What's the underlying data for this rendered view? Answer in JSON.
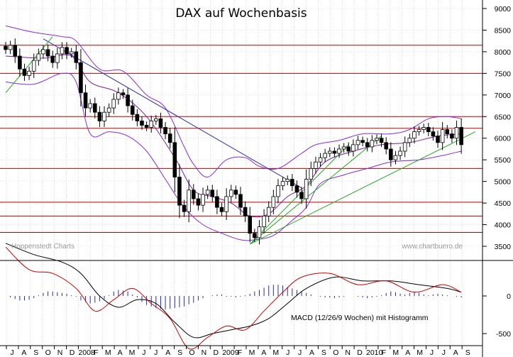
{
  "chart_data": [
    {
      "type": "candlestick",
      "title": "DAX auf Wochenbasis",
      "watermark_left": "Hoppenstedt Charts",
      "watermark_right": "www.chartbuero.de",
      "y_axis_position": "right",
      "ylim": [
        3300,
        9000
      ],
      "y_ticks": [
        3500,
        4000,
        4500,
        5000,
        5500,
        6000,
        6500,
        7000,
        7500,
        8000,
        8500,
        9000
      ],
      "horizontal_resistance_lines": [
        8150,
        7500,
        6500,
        6230,
        5300,
        4520,
        4200,
        3820
      ],
      "resistance_line_color": "#c00000",
      "x_axis": {
        "month_labels": [
          "J",
          "A",
          "S",
          "O",
          "N",
          "D",
          "2008",
          "F",
          "M",
          "A",
          "M",
          "J",
          "J",
          "A",
          "S",
          "O",
          "N",
          "D",
          "2009",
          "F",
          "M",
          "A",
          "M",
          "J",
          "J",
          "A",
          "S",
          "O",
          "N",
          "D",
          "2010",
          "F",
          "M",
          "A",
          "M",
          "J",
          "J",
          "A",
          "S"
        ]
      },
      "price_path_weekly_close": [
        [
          0,
          8050
        ],
        [
          1,
          8150
        ],
        [
          2,
          7900
        ],
        [
          3,
          7600
        ],
        [
          4,
          7450
        ],
        [
          5,
          7550
        ],
        [
          6,
          7800
        ],
        [
          7,
          7950
        ],
        [
          8,
          8050
        ],
        [
          9,
          7900
        ],
        [
          10,
          7750
        ],
        [
          11,
          7950
        ],
        [
          12,
          8100
        ],
        [
          13,
          7950
        ],
        [
          14,
          8000
        ],
        [
          15,
          7750
        ],
        [
          16,
          7050
        ],
        [
          17,
          6700
        ],
        [
          18,
          6800
        ],
        [
          19,
          6600
        ],
        [
          20,
          6400
        ],
        [
          21,
          6600
        ],
        [
          22,
          6700
        ],
        [
          23,
          6900
        ],
        [
          24,
          7050
        ],
        [
          25,
          7000
        ],
        [
          26,
          6750
        ],
        [
          27,
          6550
        ],
        [
          28,
          6400
        ],
        [
          29,
          6300
        ],
        [
          30,
          6250
        ],
        [
          31,
          6400
        ],
        [
          32,
          6450
        ],
        [
          33,
          6250
        ],
        [
          34,
          6100
        ],
        [
          35,
          5900
        ],
        [
          36,
          5100
        ],
        [
          37,
          4450
        ],
        [
          38,
          4300
        ],
        [
          39,
          4800
        ],
        [
          40,
          4600
        ],
        [
          41,
          4450
        ],
        [
          42,
          4700
        ],
        [
          43,
          4800
        ],
        [
          44,
          4650
        ],
        [
          45,
          4400
        ],
        [
          46,
          4300
        ],
        [
          47,
          4650
        ],
        [
          48,
          4800
        ],
        [
          49,
          4700
        ],
        [
          50,
          4400
        ],
        [
          51,
          4200
        ],
        [
          52,
          3800
        ],
        [
          53,
          3700
        ],
        [
          54,
          3950
        ],
        [
          55,
          4200
        ],
        [
          56,
          4400
        ],
        [
          57,
          4650
        ],
        [
          58,
          4900
        ],
        [
          59,
          5000
        ],
        [
          60,
          5050
        ],
        [
          61,
          4900
        ],
        [
          62,
          4750
        ],
        [
          63,
          4600
        ],
        [
          64,
          5050
        ],
        [
          65,
          5300
        ],
        [
          66,
          5450
        ],
        [
          67,
          5550
        ],
        [
          68,
          5650
        ],
        [
          69,
          5700
        ],
        [
          70,
          5650
        ],
        [
          71,
          5750
        ],
        [
          72,
          5800
        ],
        [
          73,
          5700
        ],
        [
          74,
          5850
        ],
        [
          75,
          5950
        ],
        [
          76,
          5900
        ],
        [
          77,
          5800
        ],
        [
          78,
          5950
        ],
        [
          79,
          6000
        ],
        [
          80,
          5900
        ],
        [
          81,
          5750
        ],
        [
          82,
          5500
        ],
        [
          83,
          5600
        ],
        [
          84,
          5700
        ],
        [
          85,
          5900
        ],
        [
          86,
          6000
        ],
        [
          87,
          6150
        ],
        [
          88,
          6200
        ],
        [
          89,
          6250
        ],
        [
          90,
          6150
        ],
        [
          91,
          6050
        ],
        [
          92,
          5900
        ],
        [
          93,
          6200
        ],
        [
          94,
          6100
        ],
        [
          95,
          6000
        ],
        [
          96,
          6250
        ],
        [
          97,
          5850
        ]
      ],
      "bollinger_upper": [
        [
          0,
          8600
        ],
        [
          6,
          8450
        ],
        [
          12,
          8350
        ],
        [
          15,
          8250
        ],
        [
          20,
          7600
        ],
        [
          25,
          7550
        ],
        [
          30,
          7000
        ],
        [
          34,
          6700
        ],
        [
          38,
          5800
        ],
        [
          40,
          5400
        ],
        [
          43,
          5100
        ],
        [
          47,
          5500
        ],
        [
          51,
          5550
        ],
        [
          54,
          5350
        ],
        [
          58,
          5300
        ],
        [
          63,
          5650
        ],
        [
          66,
          5850
        ],
        [
          71,
          5950
        ],
        [
          76,
          6100
        ],
        [
          82,
          6100
        ],
        [
          86,
          6200
        ],
        [
          90,
          6450
        ],
        [
          94,
          6500
        ],
        [
          97,
          6450
        ]
      ],
      "bollinger_lower": [
        [
          0,
          7300
        ],
        [
          6,
          7250
        ],
        [
          12,
          7500
        ],
        [
          15,
          7300
        ],
        [
          18,
          6100
        ],
        [
          22,
          6150
        ],
        [
          26,
          6050
        ],
        [
          30,
          5700
        ],
        [
          34,
          5050
        ],
        [
          38,
          4400
        ],
        [
          42,
          4000
        ],
        [
          46,
          3800
        ],
        [
          50,
          3650
        ],
        [
          53,
          3650
        ],
        [
          57,
          3750
        ],
        [
          61,
          4100
        ],
        [
          64,
          4400
        ],
        [
          67,
          4950
        ],
        [
          72,
          5150
        ],
        [
          77,
          5300
        ],
        [
          82,
          5450
        ],
        [
          88,
          5500
        ],
        [
          93,
          5600
        ],
        [
          97,
          5700
        ]
      ],
      "moving_average": [
        [
          0,
          7900
        ],
        [
          8,
          7850
        ],
        [
          14,
          7900
        ],
        [
          18,
          7300
        ],
        [
          24,
          7050
        ],
        [
          30,
          6500
        ],
        [
          36,
          5550
        ],
        [
          40,
          4800
        ],
        [
          44,
          4650
        ],
        [
          48,
          4500
        ],
        [
          52,
          4200
        ],
        [
          56,
          4250
        ],
        [
          60,
          4650
        ],
        [
          64,
          4900
        ],
        [
          68,
          5450
        ],
        [
          74,
          5700
        ],
        [
          80,
          5850
        ],
        [
          86,
          5900
        ],
        [
          92,
          6050
        ],
        [
          97,
          6100
        ]
      ],
      "trendlines": [
        {
          "color": "#2a2ab0",
          "from": [
            8,
            8300
          ],
          "to": [
            63,
            4850
          ]
        },
        {
          "color": "#22aa22",
          "from": [
            0,
            7050
          ],
          "to": [
            10,
            8350
          ]
        },
        {
          "color": "#22aa22",
          "from": [
            52,
            3550
          ],
          "to": [
            80,
            6050
          ]
        },
        {
          "color": "#22aa22",
          "from": [
            52,
            3550
          ],
          "to": [
            73,
            5850
          ]
        },
        {
          "color": "#22aa22",
          "from": [
            52,
            3550
          ],
          "to": [
            100,
            6150
          ]
        }
      ]
    },
    {
      "type": "line",
      "label": "MACD (12/26/9 Wochen) mit Histogramm",
      "ylim": [
        -600,
        800
      ],
      "y_ticks": [
        -500,
        0
      ],
      "series": [
        {
          "color": "#000000",
          "points": [
            [
              0,
              700
            ],
            [
              6,
              550
            ],
            [
              12,
              450
            ],
            [
              16,
              300
            ],
            [
              20,
              0
            ],
            [
              24,
              -150
            ],
            [
              28,
              -50
            ],
            [
              32,
              -100
            ],
            [
              36,
              -350
            ],
            [
              40,
              -550
            ],
            [
              44,
              -500
            ],
            [
              48,
              -450
            ],
            [
              52,
              -400
            ],
            [
              56,
              -300
            ],
            [
              60,
              -100
            ],
            [
              64,
              100
            ],
            [
              70,
              250
            ],
            [
              76,
              200
            ],
            [
              82,
              200
            ],
            [
              88,
              150
            ],
            [
              94,
              100
            ],
            [
              97,
              50
            ]
          ]
        },
        {
          "color": "#cc0000",
          "points": [
            [
              0,
              650
            ],
            [
              5,
              350
            ],
            [
              10,
              300
            ],
            [
              15,
              100
            ],
            [
              19,
              -200
            ],
            [
              23,
              -50
            ],
            [
              27,
              100
            ],
            [
              31,
              -100
            ],
            [
              35,
              -300
            ],
            [
              39,
              -700
            ],
            [
              43,
              -550
            ],
            [
              47,
              -400
            ],
            [
              51,
              -450
            ],
            [
              55,
              -200
            ],
            [
              59,
              50
            ],
            [
              63,
              250
            ],
            [
              69,
              300
            ],
            [
              75,
              150
            ],
            [
              81,
              200
            ],
            [
              87,
              50
            ],
            [
              93,
              150
            ],
            [
              97,
              50
            ]
          ]
        }
      ],
      "histogram": [
        0,
        -20,
        -40,
        -60,
        -60,
        -50,
        -30,
        10,
        40,
        60,
        60,
        50,
        40,
        30,
        10,
        -10,
        -60,
        -80,
        -100,
        -90,
        -70,
        -40,
        10,
        60,
        80,
        70,
        60,
        20,
        -20,
        -80,
        -120,
        -140,
        -160,
        -170,
        -180,
        -170,
        -160,
        -150,
        -140,
        -110,
        -90,
        -60,
        -30,
        0,
        10,
        20,
        20,
        -10,
        -10,
        -20,
        -10,
        10,
        30,
        60,
        80,
        110,
        140,
        150,
        150,
        140,
        120,
        100,
        80,
        60,
        40,
        20,
        0,
        -10,
        -20,
        -20,
        -30,
        -20,
        -10,
        0,
        0,
        -10,
        -20,
        -30,
        -20,
        -10,
        10,
        40,
        60,
        50,
        30,
        20,
        40,
        60,
        40,
        20,
        10,
        20,
        30,
        20,
        10,
        0,
        -10,
        -20
      ]
    }
  ]
}
